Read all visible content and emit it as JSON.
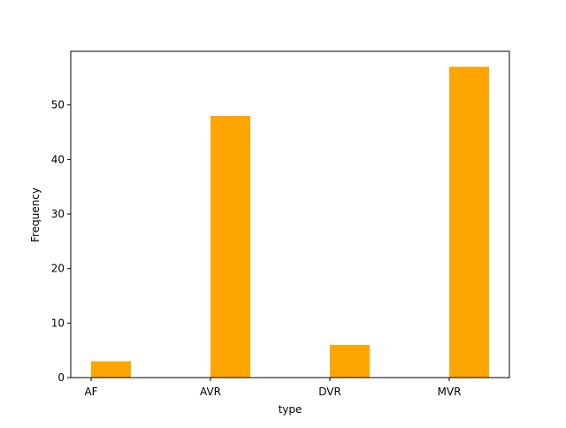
{
  "chart_data": {
    "type": "bar",
    "categories": [
      "AF",
      "AVR",
      "DVR",
      "MVR"
    ],
    "values": [
      3,
      48,
      6,
      57
    ],
    "xlabel": "type",
    "ylabel": "Frequency",
    "ylim": [
      0,
      59.85
    ],
    "yticks": [
      0,
      10,
      20,
      30,
      40,
      50
    ],
    "bar_color": "#ffa500",
    "grid": false
  }
}
